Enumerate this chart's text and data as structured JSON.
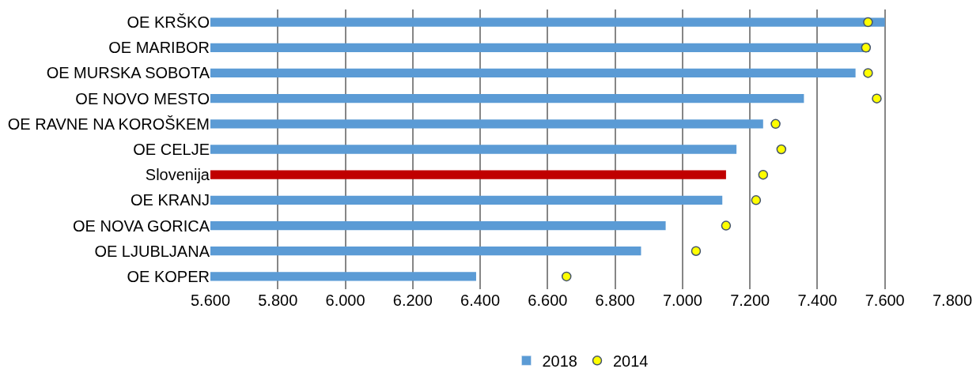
{
  "chart_data": {
    "type": "bar",
    "orientation": "horizontal",
    "categories": [
      "OE KRŠKO",
      "OE MARIBOR",
      "OE MURSKA SOBOTA",
      "OE NOVO MESTO",
      "OE RAVNE NA KOROŠKEM",
      "OE CELJE",
      "Slovenija",
      "OE KRANJ",
      "OE NOVA GORICA",
      "OE LJUBLJANA",
      "OE KOPER"
    ],
    "series": [
      {
        "name": "2018",
        "color": "#5b9bd5",
        "colors": [
          "#5b9bd5",
          "#5b9bd5",
          "#5b9bd5",
          "#5b9bd5",
          "#5b9bd5",
          "#5b9bd5",
          "#c00000",
          "#5b9bd5",
          "#5b9bd5",
          "#5b9bd5",
          "#5b9bd5"
        ],
        "values": [
          7600,
          7554,
          7513,
          7360,
          7239,
          7160,
          7129,
          7118,
          6950,
          6877,
          6388
        ]
      },
      {
        "name": "2014",
        "type": "scatter",
        "marker": "circle",
        "color": "#ffff00",
        "values": [
          7550,
          7544,
          7550,
          7576,
          7276,
          7293,
          7239,
          7218,
          7129,
          7040,
          6656
        ]
      }
    ],
    "xlim": [
      5600,
      7800
    ],
    "xticks": [
      {
        "value": 5600,
        "label": "5.600"
      },
      {
        "value": 5800,
        "label": "5.800"
      },
      {
        "value": 6000,
        "label": "6.000"
      },
      {
        "value": 6200,
        "label": "6.200"
      },
      {
        "value": 6400,
        "label": "6.400"
      },
      {
        "value": 6600,
        "label": "6.600"
      },
      {
        "value": 6800,
        "label": "6.800"
      },
      {
        "value": 7000,
        "label": "7.000"
      },
      {
        "value": 7200,
        "label": "7.200"
      },
      {
        "value": 7400,
        "label": "7.400"
      },
      {
        "value": 7600,
        "label": "7.600"
      },
      {
        "value": 7800,
        "label": "7.800"
      }
    ],
    "grid": "x",
    "legend": "bottom"
  }
}
